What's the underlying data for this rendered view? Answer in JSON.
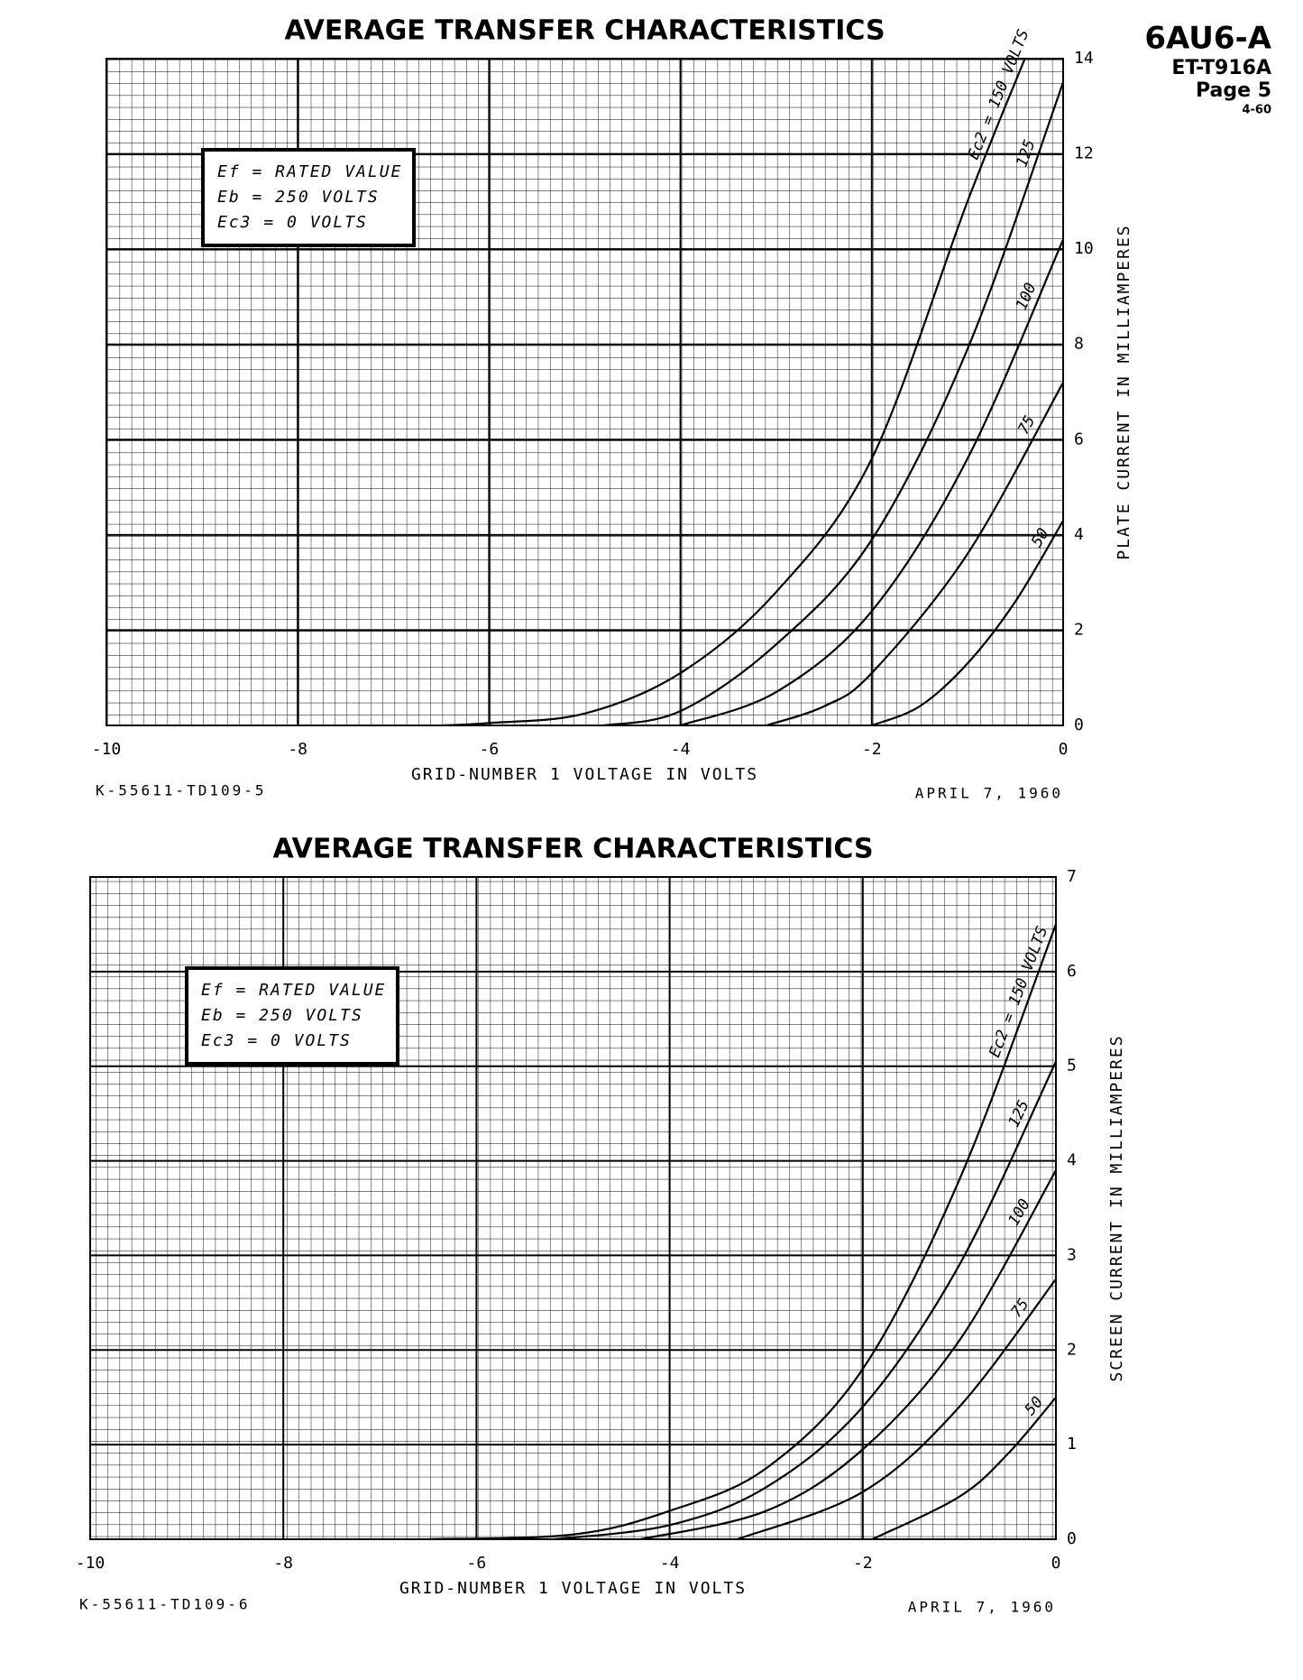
{
  "header": {
    "tube": "6AU6-A",
    "code": "ET-T916A",
    "page": "Page 5",
    "date": "4-60"
  },
  "chart_data": [
    {
      "type": "line",
      "title": "AVERAGE TRANSFER CHARACTERISTICS",
      "x_label": "GRID-NUMBER 1 VOLTAGE IN VOLTS",
      "y_label": "PLATE CURRENT IN MILLIAMPERES",
      "conditions": [
        "Ef = RATED VALUE",
        "Eb = 250 VOLTS",
        "Ec3 = 0 VOLTS"
      ],
      "drawing_number": "K-55611-TD109-5",
      "date": "APRIL 7, 1960",
      "xlim": [
        -10,
        0
      ],
      "xticks": [
        -10,
        -8,
        -6,
        -4,
        -2,
        0
      ],
      "ylim": [
        0,
        14
      ],
      "yticks": [
        0,
        2,
        4,
        6,
        8,
        10,
        12,
        14
      ],
      "grid": true,
      "series": [
        {
          "name": "Ec2 = 150 VOLTS",
          "color": "#000000",
          "x": [
            -6.5,
            -6,
            -5,
            -4,
            -3,
            -2,
            -1,
            -0.4
          ],
          "values": [
            0,
            0.05,
            0.25,
            1.1,
            2.8,
            5.6,
            11,
            14
          ]
        },
        {
          "name": "125",
          "color": "#000000",
          "x": [
            -4.8,
            -4,
            -3,
            -2,
            -1,
            0
          ],
          "values": [
            0,
            0.3,
            1.7,
            3.9,
            7.9,
            13.5
          ]
        },
        {
          "name": "100",
          "color": "#000000",
          "x": [
            -4,
            -3,
            -2,
            -1,
            0
          ],
          "values": [
            0,
            0.7,
            2.4,
            5.6,
            10.2
          ]
        },
        {
          "name": "75",
          "color": "#000000",
          "x": [
            -3.1,
            -2.5,
            -2,
            -1,
            0
          ],
          "values": [
            0,
            0.4,
            1.1,
            3.6,
            7.2
          ]
        },
        {
          "name": "50",
          "color": "#000000",
          "x": [
            -2,
            -1.5,
            -1,
            -0.5,
            0
          ],
          "values": [
            0,
            0.4,
            1.3,
            2.6,
            4.3
          ]
        }
      ]
    },
    {
      "type": "line",
      "title": "AVERAGE TRANSFER CHARACTERISTICS",
      "x_label": "GRID-NUMBER 1 VOLTAGE IN VOLTS",
      "y_label": "SCREEN CURRENT IN MILLIAMPERES",
      "conditions": [
        "Ef = RATED VALUE",
        "Eb = 250 VOLTS",
        "Ec3 = 0 VOLTS"
      ],
      "drawing_number": "K-55611-TD109-6",
      "date": "APRIL 7, 1960",
      "xlim": [
        -10,
        0
      ],
      "xticks": [
        -10,
        -8,
        -6,
        -4,
        -2,
        0
      ],
      "ylim": [
        0,
        7
      ],
      "yticks": [
        0,
        1,
        2,
        3,
        4,
        5,
        6,
        7
      ],
      "grid": true,
      "series": [
        {
          "name": "Ec2 = 150 VOLTS",
          "color": "#000000",
          "x": [
            -6.5,
            -5,
            -4,
            -3,
            -2,
            -1,
            0
          ],
          "values": [
            0,
            0.05,
            0.3,
            0.75,
            1.8,
            3.8,
            6.5
          ]
        },
        {
          "name": "125",
          "color": "#000000",
          "x": [
            -5.2,
            -4,
            -3,
            -2,
            -1,
            0
          ],
          "values": [
            0,
            0.15,
            0.55,
            1.4,
            2.9,
            5.05
          ]
        },
        {
          "name": "100",
          "color": "#000000",
          "x": [
            -4.3,
            -3,
            -2,
            -1,
            0
          ],
          "values": [
            0,
            0.3,
            0.95,
            2.1,
            3.9
          ]
        },
        {
          "name": "75",
          "color": "#000000",
          "x": [
            -3.3,
            -2,
            -1,
            0
          ],
          "values": [
            0,
            0.5,
            1.4,
            2.75
          ]
        },
        {
          "name": "50",
          "color": "#000000",
          "x": [
            -1.9,
            -1,
            -0.5,
            0
          ],
          "values": [
            0,
            0.45,
            0.9,
            1.5
          ]
        }
      ]
    }
  ]
}
